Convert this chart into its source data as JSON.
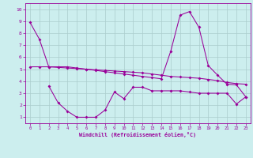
{
  "title": "",
  "xlabel": "Windchill (Refroidissement éolien,°C)",
  "background_color": "#cceeee",
  "grid_color": "#aacccc",
  "line_color": "#990099",
  "x_ticks": [
    0,
    1,
    2,
    3,
    4,
    5,
    6,
    7,
    8,
    9,
    10,
    11,
    12,
    13,
    14,
    15,
    16,
    17,
    18,
    19,
    20,
    21,
    22,
    23
  ],
  "y_ticks": [
    1,
    2,
    3,
    4,
    5,
    6,
    7,
    8,
    9,
    10
  ],
  "ylim": [
    0.5,
    10.5
  ],
  "xlim": [
    -0.5,
    23.5
  ],
  "line1_x": [
    0,
    1,
    2,
    3,
    4,
    5,
    6,
    7,
    8,
    9,
    10,
    11,
    12,
    13,
    14,
    15,
    16,
    17,
    18,
    19,
    20,
    21,
    22,
    23
  ],
  "line1_y": [
    8.9,
    7.5,
    5.2,
    5.2,
    5.2,
    5.1,
    5.0,
    4.9,
    4.8,
    4.7,
    4.6,
    4.5,
    4.4,
    4.3,
    4.2,
    6.5,
    9.5,
    9.8,
    8.5,
    5.3,
    4.5,
    3.75,
    3.7,
    2.7
  ],
  "line2_x": [
    2,
    3,
    4,
    5,
    6,
    7,
    8,
    9,
    10,
    11,
    12,
    13,
    14,
    15,
    16,
    17,
    18,
    19,
    20,
    21,
    22,
    23
  ],
  "line2_y": [
    3.6,
    2.2,
    1.5,
    1.0,
    1.0,
    1.0,
    1.6,
    3.1,
    2.55,
    3.5,
    3.5,
    3.2,
    3.2,
    3.2,
    3.2,
    3.1,
    3.0,
    3.0,
    3.0,
    3.0,
    2.1,
    2.7
  ],
  "line3_x": [
    0,
    1,
    2,
    3,
    4,
    5,
    6,
    7,
    8,
    9,
    10,
    11,
    12,
    13,
    14,
    15,
    16,
    17,
    18,
    19,
    20,
    21,
    22,
    23
  ],
  "line3_y": [
    5.2,
    5.2,
    5.2,
    5.15,
    5.1,
    5.05,
    5.0,
    4.95,
    4.9,
    4.85,
    4.8,
    4.75,
    4.7,
    4.6,
    4.5,
    4.4,
    4.35,
    4.3,
    4.25,
    4.15,
    4.05,
    3.9,
    3.8,
    3.75
  ]
}
